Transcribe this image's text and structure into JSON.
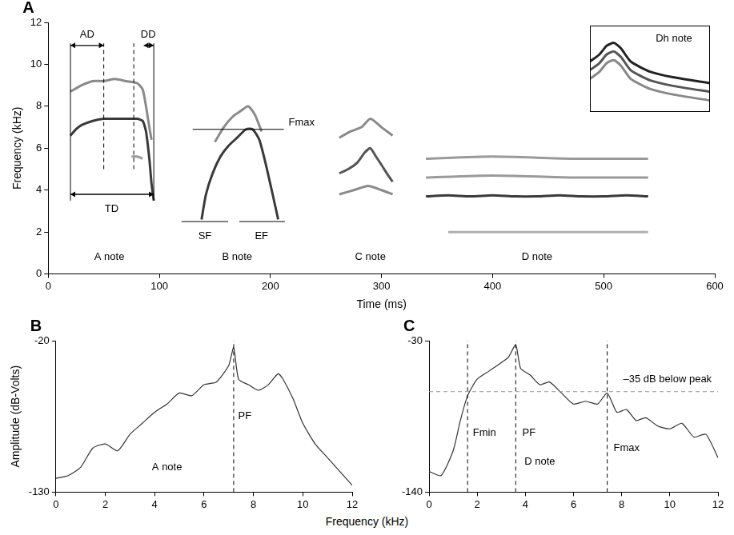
{
  "figure": {
    "x_label": "Frequency (kHz)"
  },
  "chart_data": [
    {
      "panel": "A",
      "type": "line",
      "x_label": "Time (ms)",
      "y_label": "Frequency (kHz)",
      "xlim": [
        0,
        600
      ],
      "xticks": [
        0,
        100,
        200,
        300,
        400,
        500,
        600
      ],
      "ylim": [
        0,
        12
      ],
      "yticks": [
        0,
        2,
        4,
        6,
        8,
        10,
        12
      ],
      "grid": false,
      "series": [
        {
          "color": "#3a3a3a",
          "x": [
            20,
            25,
            30,
            40,
            50,
            60,
            70,
            80,
            85,
            88,
            91,
            93,
            95
          ],
          "values": [
            6.6,
            6.9,
            7.1,
            7.3,
            7.4,
            7.4,
            7.4,
            7.4,
            7.3,
            6.8,
            5.5,
            4.3,
            3.5
          ]
        },
        {
          "color": "#8a8a8a",
          "x": [
            20,
            30,
            40,
            50,
            60,
            70,
            80,
            85,
            88,
            91,
            93
          ],
          "values": [
            8.7,
            9.0,
            9.2,
            9.2,
            9.3,
            9.2,
            9.1,
            8.8,
            8.0,
            7.0,
            6.4
          ]
        },
        {
          "color": "#9a9a9a",
          "x": [
            75,
            80,
            85
          ],
          "values": [
            5.6,
            5.6,
            5.5
          ]
        },
        {
          "color": "#3a3a3a",
          "x": [
            138,
            142,
            148,
            155,
            162,
            170,
            178,
            184,
            190,
            196,
            202,
            207
          ],
          "values": [
            2.6,
            3.8,
            4.8,
            5.6,
            6.1,
            6.5,
            6.9,
            6.9,
            6.4,
            5.2,
            3.8,
            2.6
          ]
        },
        {
          "color": "#8a8a8a",
          "x": [
            150,
            158,
            166,
            174,
            180,
            186,
            192
          ],
          "values": [
            6.3,
            7.0,
            7.5,
            7.8,
            8.0,
            7.6,
            6.8
          ]
        },
        {
          "color": "#555555",
          "x": [
            262,
            270,
            278,
            285,
            290,
            295,
            300,
            306,
            310
          ],
          "values": [
            4.8,
            5.0,
            5.3,
            5.8,
            6.0,
            5.6,
            5.2,
            4.7,
            4.4
          ]
        },
        {
          "color": "#8a8a8a",
          "x": [
            262,
            272,
            282,
            290,
            300,
            310
          ],
          "values": [
            6.5,
            6.8,
            7.0,
            7.4,
            7.0,
            6.6
          ]
        },
        {
          "color": "#8a8a8a",
          "x": [
            262,
            275,
            288,
            300,
            310
          ],
          "values": [
            3.8,
            4.0,
            4.2,
            4.0,
            3.8
          ]
        },
        {
          "color": "#3a3a3a",
          "x": [
            340,
            360,
            380,
            400,
            420,
            440,
            460,
            480,
            500,
            520,
            540
          ],
          "values": [
            3.7,
            3.75,
            3.7,
            3.75,
            3.7,
            3.7,
            3.75,
            3.7,
            3.7,
            3.75,
            3.7
          ]
        },
        {
          "color": "#9a9a9a",
          "x": [
            340,
            400,
            470,
            540
          ],
          "values": [
            5.5,
            5.6,
            5.5,
            5.5
          ]
        },
        {
          "color": "#9a9a9a",
          "x": [
            340,
            400,
            470,
            540
          ],
          "values": [
            4.6,
            4.7,
            4.6,
            4.6
          ]
        },
        {
          "color": "#b0b0b0",
          "x": [
            360,
            540
          ],
          "values": [
            2.0,
            2.0
          ]
        }
      ],
      "lines": [
        {
          "x": [
            20,
            20
          ],
          "y": [
            3.5,
            11
          ],
          "line_style": "solid"
        },
        {
          "x": [
            95,
            95
          ],
          "y": [
            3.5,
            11
          ],
          "line_style": "solid"
        },
        {
          "x": [
            50,
            50
          ],
          "y": [
            5,
            11
          ],
          "line_style": "dashed"
        },
        {
          "x": [
            77,
            77
          ],
          "y": [
            5,
            11
          ],
          "line_style": "dashed"
        },
        {
          "x": [
            130,
            212
          ],
          "y": [
            6.9,
            6.9
          ],
          "line_style": "solid"
        },
        {
          "x": [
            120,
            162
          ],
          "y": [
            2.5,
            2.5
          ],
          "line_style": "solid"
        },
        {
          "x": [
            172,
            213
          ],
          "y": [
            2.5,
            2.5
          ],
          "line_style": "solid"
        }
      ],
      "arrows": [
        {
          "x": [
            20,
            50
          ],
          "y": 10.9
        },
        {
          "x": [
            86,
            95
          ],
          "y": 10.9
        },
        {
          "x": [
            20,
            95
          ],
          "y": 3.8
        }
      ],
      "annotations": [
        {
          "text": "AD",
          "x": 35,
          "y": 11.4
        },
        {
          "text": "DD",
          "x": 90,
          "y": 11.4
        },
        {
          "text": "TD",
          "x": 57,
          "y": 3.1
        },
        {
          "text": "Fmax",
          "x": 228,
          "y": 7.2
        },
        {
          "text": "SF",
          "x": 141,
          "y": 1.8
        },
        {
          "text": "EF",
          "x": 192,
          "y": 1.8
        },
        {
          "text": "A note",
          "x": 55,
          "y": 0.8
        },
        {
          "text": "B note",
          "x": 170,
          "y": 0.8
        },
        {
          "text": "C note",
          "x": 290,
          "y": 0.8
        },
        {
          "text": "D note",
          "x": 440,
          "y": 0.8
        }
      ]
    },
    {
      "panel": "B",
      "type": "line",
      "y_label": "Amplitude (dB-Volts)",
      "xlim": [
        0,
        12
      ],
      "xticks": [
        0,
        2,
        4,
        6,
        8,
        10,
        12
      ],
      "ylim": [
        -130,
        -20
      ],
      "yticks": [
        -130,
        -20
      ],
      "grid": false,
      "series": [
        {
          "color": "#333333",
          "x": [
            0,
            0.5,
            1,
            1.5,
            2,
            2.5,
            3,
            3.5,
            4,
            4.5,
            5,
            5.5,
            6,
            6.5,
            7,
            7.2,
            7.4,
            7.8,
            8.2,
            8.6,
            9,
            9.2,
            9.6,
            10,
            10.5,
            11,
            11.5,
            12
          ],
          "values": [
            -120,
            -118,
            -112,
            -98,
            -95,
            -100,
            -88,
            -80,
            -72,
            -66,
            -58,
            -60,
            -52,
            -50,
            -38,
            -25,
            -48,
            -52,
            -56,
            -52,
            -44,
            -48,
            -62,
            -80,
            -95,
            -105,
            -115,
            -125
          ]
        }
      ],
      "lines": [
        {
          "x": [
            7.2,
            7.2
          ],
          "y": [
            -130,
            -20
          ],
          "line_style": "dashed"
        }
      ],
      "annotations": [
        {
          "text": "PF",
          "x": 7.65,
          "y": -75
        },
        {
          "text": "A note",
          "x": 4.5,
          "y": -112
        }
      ]
    },
    {
      "panel": "C",
      "type": "line",
      "xlim": [
        0,
        12
      ],
      "xticks": [
        0,
        2,
        4,
        6,
        8,
        10,
        12
      ],
      "ylim": [
        -140,
        -30
      ],
      "yticks": [
        -140,
        -30
      ],
      "grid": false,
      "series": [
        {
          "color": "#333333",
          "x": [
            0,
            0.5,
            1,
            1.3,
            1.6,
            2,
            2.5,
            3,
            3.3,
            3.6,
            3.8,
            4.2,
            4.6,
            5,
            5.5,
            6,
            6.5,
            7,
            7.4,
            7.8,
            8.2,
            8.6,
            9,
            9.5,
            10,
            10.5,
            11,
            11.5,
            12
          ],
          "values": [
            -125,
            -128,
            -110,
            -88,
            -70,
            -58,
            -52,
            -46,
            -42,
            -33,
            -50,
            -55,
            -62,
            -60,
            -68,
            -76,
            -74,
            -76,
            -68,
            -82,
            -80,
            -88,
            -86,
            -92,
            -94,
            -90,
            -100,
            -98,
            -115
          ]
        }
      ],
      "lines": [
        {
          "x": [
            1.6,
            1.6
          ],
          "y": [
            -140,
            -30
          ],
          "line_style": "dashed"
        },
        {
          "x": [
            3.6,
            3.6
          ],
          "y": [
            -140,
            -30
          ],
          "line_style": "dashed"
        },
        {
          "x": [
            7.4,
            7.4
          ],
          "y": [
            -140,
            -30
          ],
          "line_style": "dashed"
        },
        {
          "x": [
            0,
            12
          ],
          "y": [
            -67,
            -67
          ],
          "line_style": "dashed",
          "color": "#999999"
        }
      ],
      "annotations": [
        {
          "text": "–35 dB below peak",
          "x": 9.9,
          "y": -58
        },
        {
          "text": "Fmin",
          "x": 2.3,
          "y": -97
        },
        {
          "text": "PF",
          "x": 4.15,
          "y": -97
        },
        {
          "text": "Fmax",
          "x": 8.2,
          "y": -108
        },
        {
          "text": "D note",
          "x": 4.6,
          "y": -118
        }
      ]
    },
    {
      "type": "line",
      "tick_labels": false,
      "xlim": [
        0,
        100
      ],
      "ylim": [
        3,
        9
      ],
      "series": [
        {
          "color": "#222222",
          "x": [
            0,
            8,
            14,
            20,
            26,
            34,
            50,
            70,
            100
          ],
          "values": [
            6.5,
            7.0,
            7.6,
            7.8,
            7.4,
            6.5,
            5.8,
            5.4,
            5.0
          ]
        },
        {
          "color": "#555555",
          "x": [
            0,
            8,
            14,
            20,
            26,
            34,
            50,
            70,
            100
          ],
          "values": [
            5.9,
            6.4,
            7.0,
            7.2,
            6.8,
            5.9,
            5.2,
            4.8,
            4.4
          ]
        },
        {
          "color": "#888888",
          "x": [
            0,
            8,
            14,
            20,
            26,
            34,
            50,
            70,
            100
          ],
          "values": [
            5.3,
            5.8,
            6.4,
            6.6,
            6.2,
            5.3,
            4.6,
            4.2,
            3.8
          ]
        }
      ],
      "annotations": [
        {
          "text": "Dh note",
          "x": 70,
          "y": 8.1
        }
      ]
    }
  ]
}
